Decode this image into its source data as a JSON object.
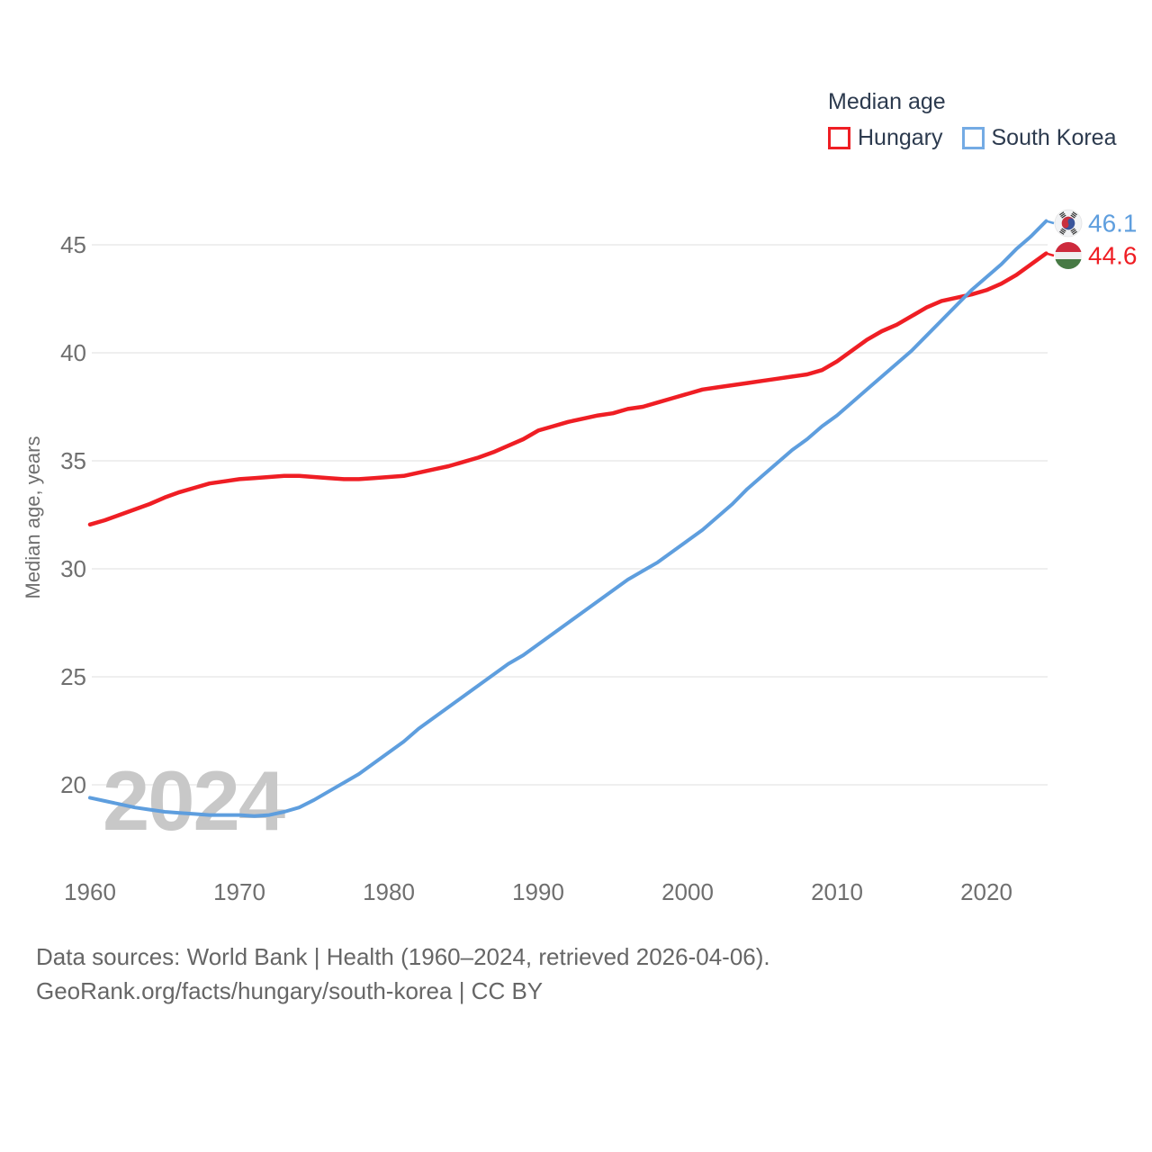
{
  "legend": {
    "title": "Median age",
    "items": [
      {
        "label": "Hungary",
        "color": "#ef1e24"
      },
      {
        "label": "South Korea",
        "color": "#74abe4"
      }
    ]
  },
  "chart_data": {
    "type": "line",
    "title": "Median age",
    "ylabel": "Median age, years",
    "xlabel": "",
    "x_range": [
      1960,
      2024
    ],
    "ylim": [
      17.5,
      47
    ],
    "y_ticks": [
      20,
      25,
      30,
      35,
      40,
      45
    ],
    "x_ticks": [
      1960,
      1970,
      1980,
      1990,
      2000,
      2010,
      2020
    ],
    "grid": true,
    "legend_position": "top-right",
    "watermark": "2024",
    "years": [
      1960,
      1961,
      1962,
      1963,
      1964,
      1965,
      1966,
      1967,
      1968,
      1969,
      1970,
      1971,
      1972,
      1973,
      1974,
      1975,
      1976,
      1977,
      1978,
      1979,
      1980,
      1981,
      1982,
      1983,
      1984,
      1985,
      1986,
      1987,
      1988,
      1989,
      1990,
      1991,
      1992,
      1993,
      1994,
      1995,
      1996,
      1997,
      1998,
      1999,
      2000,
      2001,
      2002,
      2003,
      2004,
      2005,
      2006,
      2007,
      2008,
      2009,
      2010,
      2011,
      2012,
      2013,
      2014,
      2015,
      2016,
      2017,
      2018,
      2019,
      2020,
      2021,
      2022,
      2023,
      2024
    ],
    "series": [
      {
        "name": "Hungary",
        "color": "#ef1e24",
        "end_value_label": "44.6",
        "flag": "hungary",
        "values": [
          32.05,
          32.25,
          32.5,
          32.75,
          33.0,
          33.3,
          33.55,
          33.75,
          33.95,
          34.05,
          34.15,
          34.2,
          34.25,
          34.3,
          34.3,
          34.25,
          34.2,
          34.15,
          34.15,
          34.2,
          34.25,
          34.3,
          34.45,
          34.6,
          34.75,
          34.95,
          35.15,
          35.4,
          35.7,
          36.0,
          36.4,
          36.6,
          36.8,
          36.95,
          37.1,
          37.2,
          37.4,
          37.5,
          37.7,
          37.9,
          38.1,
          38.3,
          38.4,
          38.5,
          38.6,
          38.7,
          38.8,
          38.9,
          39.0,
          39.2,
          39.6,
          40.1,
          40.6,
          41.0,
          41.3,
          41.7,
          42.1,
          42.4,
          42.55,
          42.7,
          42.9,
          43.2,
          43.6,
          44.1,
          44.6
        ]
      },
      {
        "name": "South Korea",
        "color": "#5e9ede",
        "end_value_label": "46.1",
        "flag": "south-korea",
        "values": [
          19.4,
          19.25,
          19.1,
          18.95,
          18.85,
          18.75,
          18.7,
          18.65,
          18.6,
          18.6,
          18.6,
          18.55,
          18.6,
          18.75,
          18.95,
          19.3,
          19.7,
          20.1,
          20.5,
          21.0,
          21.5,
          22.0,
          22.6,
          23.1,
          23.6,
          24.1,
          24.6,
          25.1,
          25.6,
          26.0,
          26.5,
          27.0,
          27.5,
          28.0,
          28.5,
          29.0,
          29.5,
          29.9,
          30.3,
          30.8,
          31.3,
          31.8,
          32.4,
          33.0,
          33.7,
          34.3,
          34.9,
          35.5,
          36.0,
          36.6,
          37.1,
          37.7,
          38.3,
          38.9,
          39.5,
          40.1,
          40.8,
          41.5,
          42.2,
          42.9,
          43.5,
          44.1,
          44.8,
          45.4,
          46.1
        ]
      }
    ]
  },
  "footer": {
    "line1": "Data sources: World Bank | Health (1960–2024, retrieved 2026-04-06).",
    "line2": "GeoRank.org/facts/hungary/south-korea | CC BY"
  },
  "colors": {
    "grid": "#eaeaea",
    "tick_text": "#6f6f6f",
    "axis_title": "#6f6f6f",
    "watermark": "#c8c8c8",
    "legend_text": "#2c3a4e",
    "footer_text": "#666666",
    "flag_hungary_red": "#cd2a3c",
    "flag_hungary_white": "#f0f0f0",
    "flag_hungary_green": "#477a45",
    "flag_korea_bg": "#f2f3f5",
    "flag_korea_red": "#c8303e",
    "flag_korea_blue": "#39549b",
    "flag_korea_black": "#2f2f2f"
  }
}
